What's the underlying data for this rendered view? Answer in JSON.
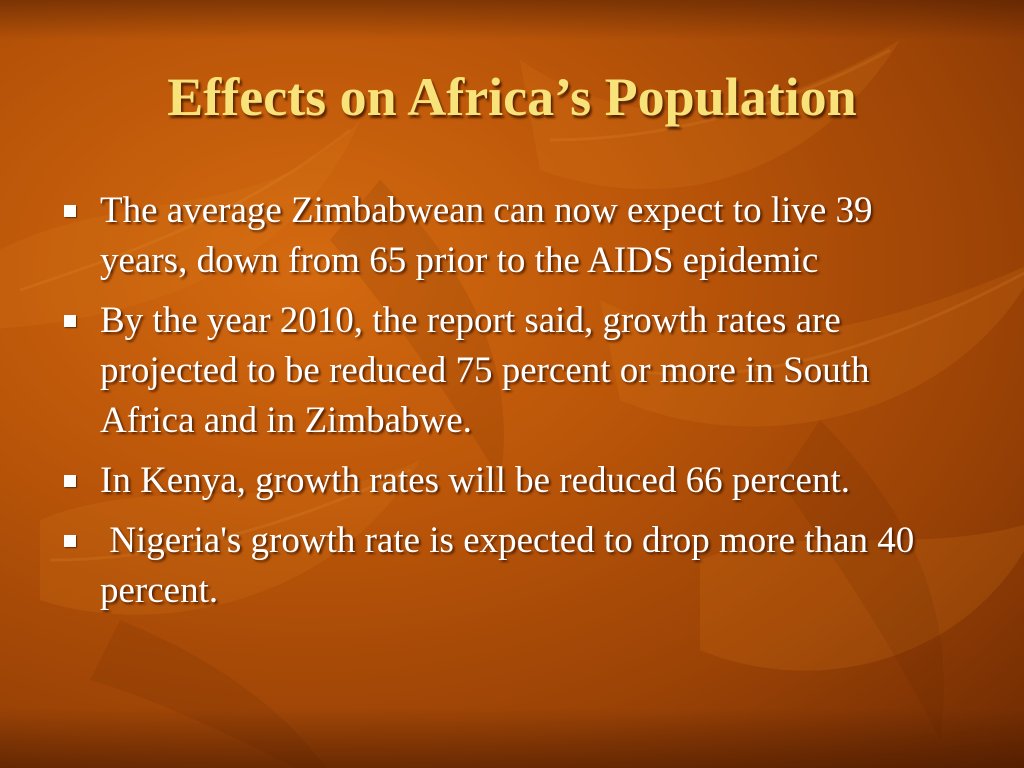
{
  "slide": {
    "title": "Effects on Africa’s Population",
    "bullets": [
      {
        "text": "The average Zimbabwean can now expect to live 39 years, down from 65 prior to the AIDS epidemic"
      },
      {
        "text": "By the year 2010, the report said, growth rates are projected to be reduced 75 percent or more in South Africa and in Zimbabwe."
      },
      {
        "text": "In Kenya, growth rates will be reduced 66 percent."
      },
      {
        "text": " Nigeria's growth rate is expected to drop more than 40 percent."
      }
    ]
  },
  "colors": {
    "title": "#f8e27a",
    "body_text": "#ffffff",
    "background": "#bb5609"
  }
}
